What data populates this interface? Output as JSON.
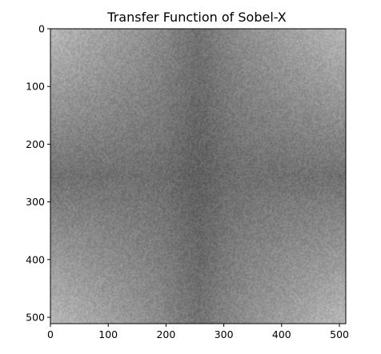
{
  "chart_data": {
    "type": "heatmap",
    "title": "Transfer Function of Sobel-X",
    "xlabel": "",
    "ylabel": "",
    "colormap": "gray",
    "image_size": [
      512,
      512
    ],
    "xlim": [
      0,
      511
    ],
    "ylim": [
      511,
      0
    ],
    "x_ticks": [
      0,
      100,
      200,
      300,
      400,
      500
    ],
    "y_ticks": [
      0,
      100,
      200,
      300,
      400,
      500
    ],
    "x_tick_labels": [
      "0",
      "100",
      "200",
      "300",
      "400",
      "500"
    ],
    "y_tick_labels": [
      "0",
      "100",
      "200",
      "300",
      "400",
      "500"
    ],
    "grid": false,
    "values_description_levels": {
      "corners": 0.72,
      "center": 0.44,
      "vertical_center_band": 0.38,
      "edges_mid": 0.5
    }
  }
}
